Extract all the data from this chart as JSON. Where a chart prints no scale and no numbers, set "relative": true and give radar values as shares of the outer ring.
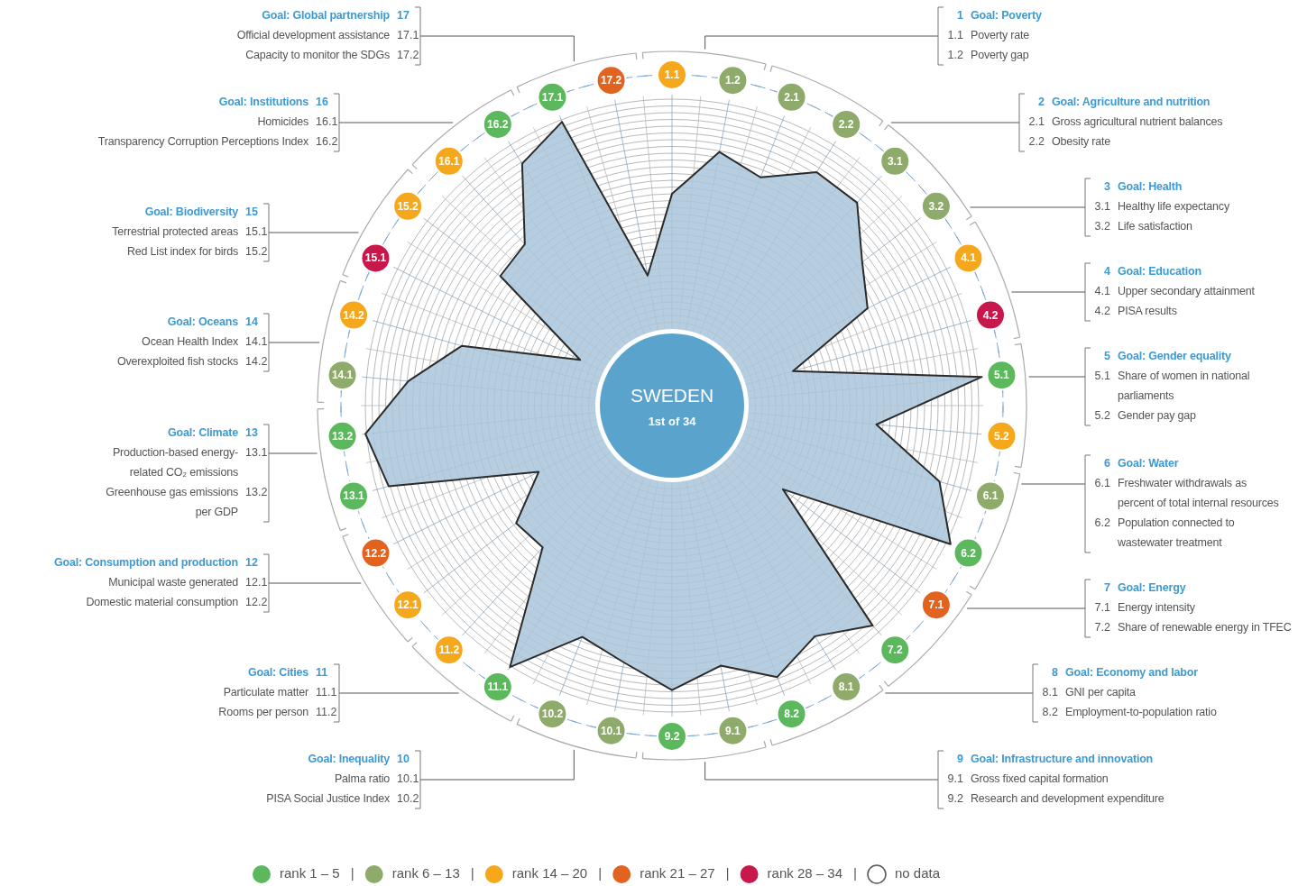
{
  "chart_data": {
    "type": "radar",
    "title": "SWEDEN",
    "subtitle": "1st of 34",
    "relative": true,
    "grid": true,
    "categories": [
      "1.1",
      "1.2",
      "2.1",
      "2.2",
      "3.1",
      "3.2",
      "4.1",
      "4.2",
      "5.1",
      "5.2",
      "6.1",
      "6.2",
      "7.1",
      "7.2",
      "8.1",
      "8.2",
      "9.1",
      "9.2",
      "10.1",
      "10.2",
      "11.1",
      "11.2",
      "12.1",
      "12.2",
      "13.1",
      "13.2",
      "14.1",
      "14.2",
      "15.1",
      "15.2",
      "16.1",
      "16.2",
      "17.1",
      "17.2"
    ],
    "colors": [
      "#f5a81c",
      "#8fab6b",
      "#8fab6b",
      "#8fab6b",
      "#8fab6b",
      "#8fab6b",
      "#f5a81c",
      "#c8174b",
      "#5cb85c",
      "#f5a81c",
      "#8fab6b",
      "#5cb85c",
      "#e2631f",
      "#5cb85c",
      "#8fab6b",
      "#5cb85c",
      "#8fab6b",
      "#5cb85c",
      "#8fab6b",
      "#8fab6b",
      "#5cb85c",
      "#f5a81c",
      "#f5a81c",
      "#e2631f",
      "#5cb85c",
      "#5cb85c",
      "#8fab6b",
      "#f5a81c",
      "#c8174b",
      "#f5a81c",
      "#f5a81c",
      "#5cb85c",
      "#5cb85c",
      "#e2631f"
    ],
    "series": [
      {
        "color": "#a9c6da",
        "values": [
          0.64,
          0.78,
          0.74,
          0.83,
          0.83,
          0.72,
          0.66,
          0.38,
          0.94,
          0.62,
          0.84,
          0.94,
          0.42,
          0.9,
          0.82,
          0.88,
          0.8,
          0.86,
          0.79,
          0.75,
          0.93,
          0.58,
          0.59,
          0.45,
          0.89,
          0.93,
          0.8,
          0.66,
          0.31,
          0.65,
          0.66,
          0.86,
          0.92,
          0.4
        ]
      }
    ],
    "annotations": [
      "1 Goal: Poverty",
      "1.1 Poverty rate",
      "1.2 Poverty gap",
      "2 Goal: Agriculture and nutrition",
      "2.1 Gross agricultural nutrient balances",
      "2.2 Obesity rate",
      "3 Goal: Health",
      "3.1 Healthy life expectancy",
      "3.2 Life satisfaction",
      "4 Goal: Education",
      "4.1 Upper secondary attainment",
      "4.2 PISA results",
      "5 Goal: Gender equality",
      "5.1 Share of women in national parliaments",
      "5.2 Gender pay gap",
      "6 Goal: Water",
      "6.1 Freshwater withdrawals as percent of total internal resources",
      "6.2 Population connected to wastewater treatment",
      "7 Goal: Energy",
      "7.1 Energy intensity",
      "7.2 Share of renewable energy in TFEC",
      "8 Goal: Economy and labor",
      "8.1 GNI per capita",
      "8.2 Employment-to-population ratio",
      "9 Goal: Infrastructure and innovation",
      "9.1 Gross fixed capital formation",
      "9.2 Research and development expenditure",
      "Goal: Inequality 10",
      "Palma ratio 10.1",
      "PISA Social Justice Index 10.2",
      "Goal: Cities 11",
      "Particulate matter 11.1",
      "Rooms per person 11.2",
      "Goal: Consumption and production 12",
      "Municipal waste generated 12.1",
      "Domestic material consumption 12.2",
      "Goal: Climate 13",
      "Production-based energy-related CO₂ emissions 13.1",
      "Greenhouse gas emissions per GDP 13.2",
      "Goal: Oceans 14",
      "Ocean Health Index 14.1",
      "Overexploited fish stocks 14.2",
      "Goal: Biodiversity 15",
      "Terrestrial protected areas 15.1",
      "Red List index for birds 15.2",
      "Goal: Institutions 16",
      "Homicides 16.1",
      "Transparency Corruption Perceptions Index 16.2",
      "Goal: Global partnership 17",
      "Official development assistance 17.1",
      "Capacity to monitor the SDGs 17.2",
      "rank 1 – 5",
      "rank 6 – 13",
      "rank 14 – 20",
      "rank 21 – 27",
      "rank 28 – 34",
      "no data"
    ]
  }
}
